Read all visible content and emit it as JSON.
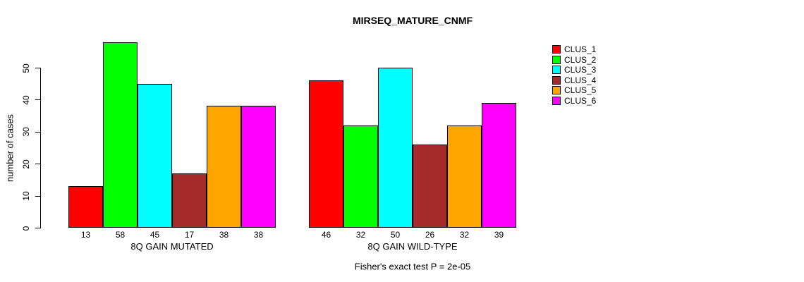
{
  "title": "MIRSEQ_MATURE_CNMF",
  "ylabel": "number of cases",
  "footer": "Fisher's exact test P = 2e-05",
  "chart_data": {
    "type": "bar",
    "title": "MIRSEQ_MATURE_CNMF",
    "xlabel": "",
    "ylabel": "number of cases",
    "ylim": [
      0,
      58
    ],
    "yticks": [
      0,
      10,
      20,
      30,
      40,
      50
    ],
    "grid": false,
    "legend_position": "right",
    "series": [
      "CLUS_1",
      "CLUS_2",
      "CLUS_3",
      "CLUS_4",
      "CLUS_5",
      "CLUS_6"
    ],
    "colors": [
      "#FF0000",
      "#00FF00",
      "#00FFFF",
      "#A52A2A",
      "#FFA500",
      "#FF00FF"
    ],
    "groups": [
      {
        "label": "8Q GAIN MUTATED",
        "values": [
          13,
          58,
          45,
          17,
          38,
          38
        ]
      },
      {
        "label": "8Q GAIN WILD-TYPE",
        "values": [
          46,
          32,
          50,
          26,
          32,
          39
        ]
      }
    ],
    "annotation": "Fisher's exact test P = 2e-05"
  }
}
